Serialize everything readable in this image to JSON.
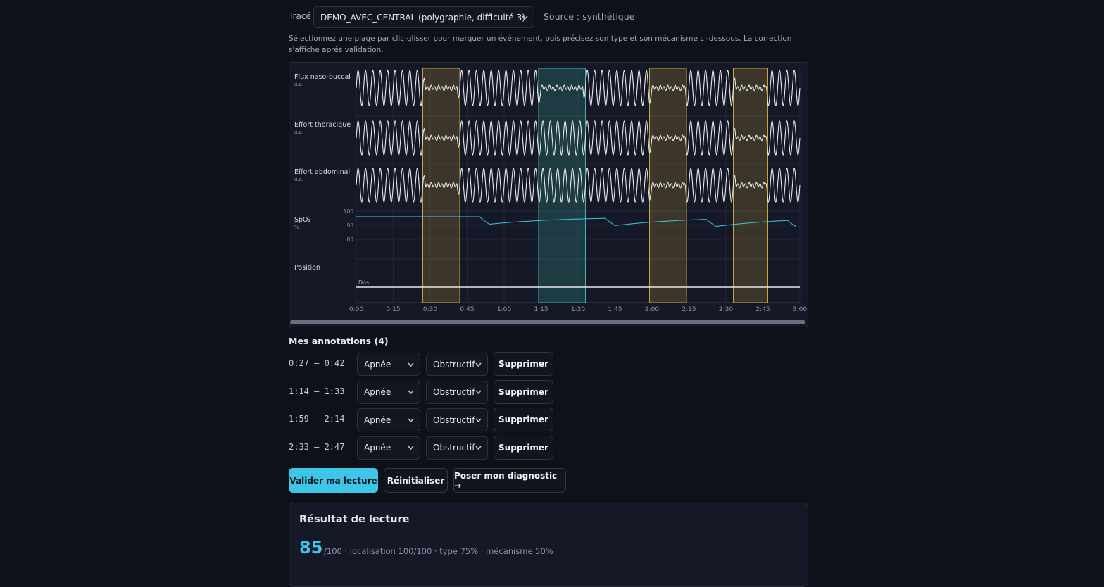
{
  "header": {
    "trace_label": "Tracé",
    "trace_select": "DEMO_AVEC_CENTRAL (polygraphie, difficulté 3)",
    "source": "Source : synthétique"
  },
  "instructions": "Sélectionnez une plage par clic-glisser pour marquer un événement, puis précisez son type et son mécanisme ci-dessous. La correction s'affiche après validation.",
  "chart": {
    "channels": [
      {
        "label": "Flux naso-buccal",
        "unit": "u.a."
      },
      {
        "label": "Effort thoracique",
        "unit": "u.a."
      },
      {
        "label": "Effort abdominal",
        "unit": "u.a."
      },
      {
        "label": "SpO₂",
        "unit": "%"
      },
      {
        "label": "Position"
      }
    ],
    "spo2_ticks": [
      100,
      90,
      80
    ],
    "position_label": "Dos",
    "xticks": [
      "0:00",
      "0:15",
      "0:30",
      "0:45",
      "1:00",
      "1:15",
      "1:30",
      "1:45",
      "2:00",
      "2:15",
      "2:30",
      "2:45",
      "3:00"
    ]
  },
  "annotations": {
    "title": "Mes annotations (4)",
    "items": [
      {
        "range": "0:27 — 0:42",
        "type": "Apnée",
        "mechanism": "Obstructif",
        "delete": "Supprimer",
        "color": "#c9a43a"
      },
      {
        "range": "1:14 — 1:33",
        "type": "Apnée",
        "mechanism": "Obstructif",
        "delete": "Supprimer",
        "color": "#3fb8a8"
      },
      {
        "range": "1:59 — 2:14",
        "type": "Apnée",
        "mechanism": "Obstructif",
        "delete": "Supprimer",
        "color": "#c9a43a"
      },
      {
        "range": "2:33 — 2:47",
        "type": "Apnée",
        "mechanism": "Obstructif",
        "delete": "Supprimer",
        "color": "#c9a43a"
      }
    ]
  },
  "actions": {
    "validate": "Valider ma lecture",
    "reset": "Réinitialiser",
    "diagnose": "Poser mon diagnostic →"
  },
  "result": {
    "title": "Résultat de lecture",
    "score": 85,
    "details": "/100 · localisation 100/100 · type 75% · mécanisme 50%"
  }
}
